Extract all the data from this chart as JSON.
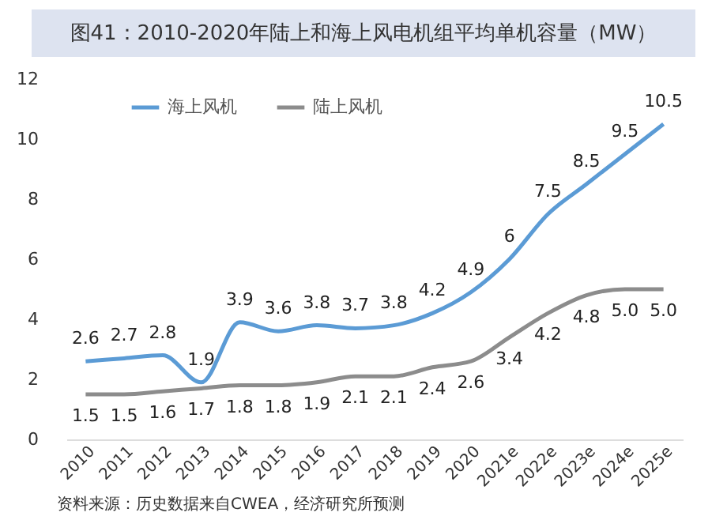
{
  "chart_data": {
    "type": "line",
    "title": "图41：2010-2020年陆上和海上风电机组平均单机容量（MW）",
    "categories": [
      "2010",
      "2011",
      "2012",
      "2013",
      "2014",
      "2015",
      "2016",
      "2017",
      "2018",
      "2019",
      "2020",
      "2021e",
      "2022e",
      "2023e",
      "2024e",
      "2025e"
    ],
    "series": [
      {
        "name": "海上风机",
        "color": "#5b9bd5",
        "values": [
          2.6,
          2.7,
          2.8,
          1.9,
          3.9,
          3.6,
          3.8,
          3.7,
          3.8,
          4.2,
          4.9,
          6,
          7.5,
          8.5,
          9.5,
          10.5
        ],
        "value_labels": [
          "2.6",
          "2.7",
          "2.8",
          "1.9",
          "3.9",
          "3.6",
          "3.8",
          "3.7",
          "3.8",
          "4.2",
          "4.9",
          "6",
          "7.5",
          "8.5",
          "9.5",
          "10.5"
        ]
      },
      {
        "name": "陆上风机",
        "color": "#8c8c8c",
        "values": [
          1.5,
          1.5,
          1.6,
          1.7,
          1.8,
          1.8,
          1.9,
          2.1,
          2.1,
          2.4,
          2.6,
          3.4,
          4.2,
          4.8,
          5.0,
          5.0
        ],
        "value_labels": [
          "1.5",
          "1.5",
          "1.6",
          "1.7",
          "1.8",
          "1.8",
          "1.9",
          "2.1",
          "2.1",
          "2.4",
          "2.6",
          "3.4",
          "4.2",
          "4.8",
          "5.0",
          "5.0"
        ]
      }
    ],
    "ylim": [
      0,
      12
    ],
    "yticks": [
      0,
      2,
      4,
      6,
      8,
      10,
      12
    ],
    "grid": false,
    "legend": "top left",
    "marker": "none",
    "line_style": "solid",
    "annotations": [
      "资料来源：历史数据来自CWEA，经济研究所预测"
    ]
  }
}
